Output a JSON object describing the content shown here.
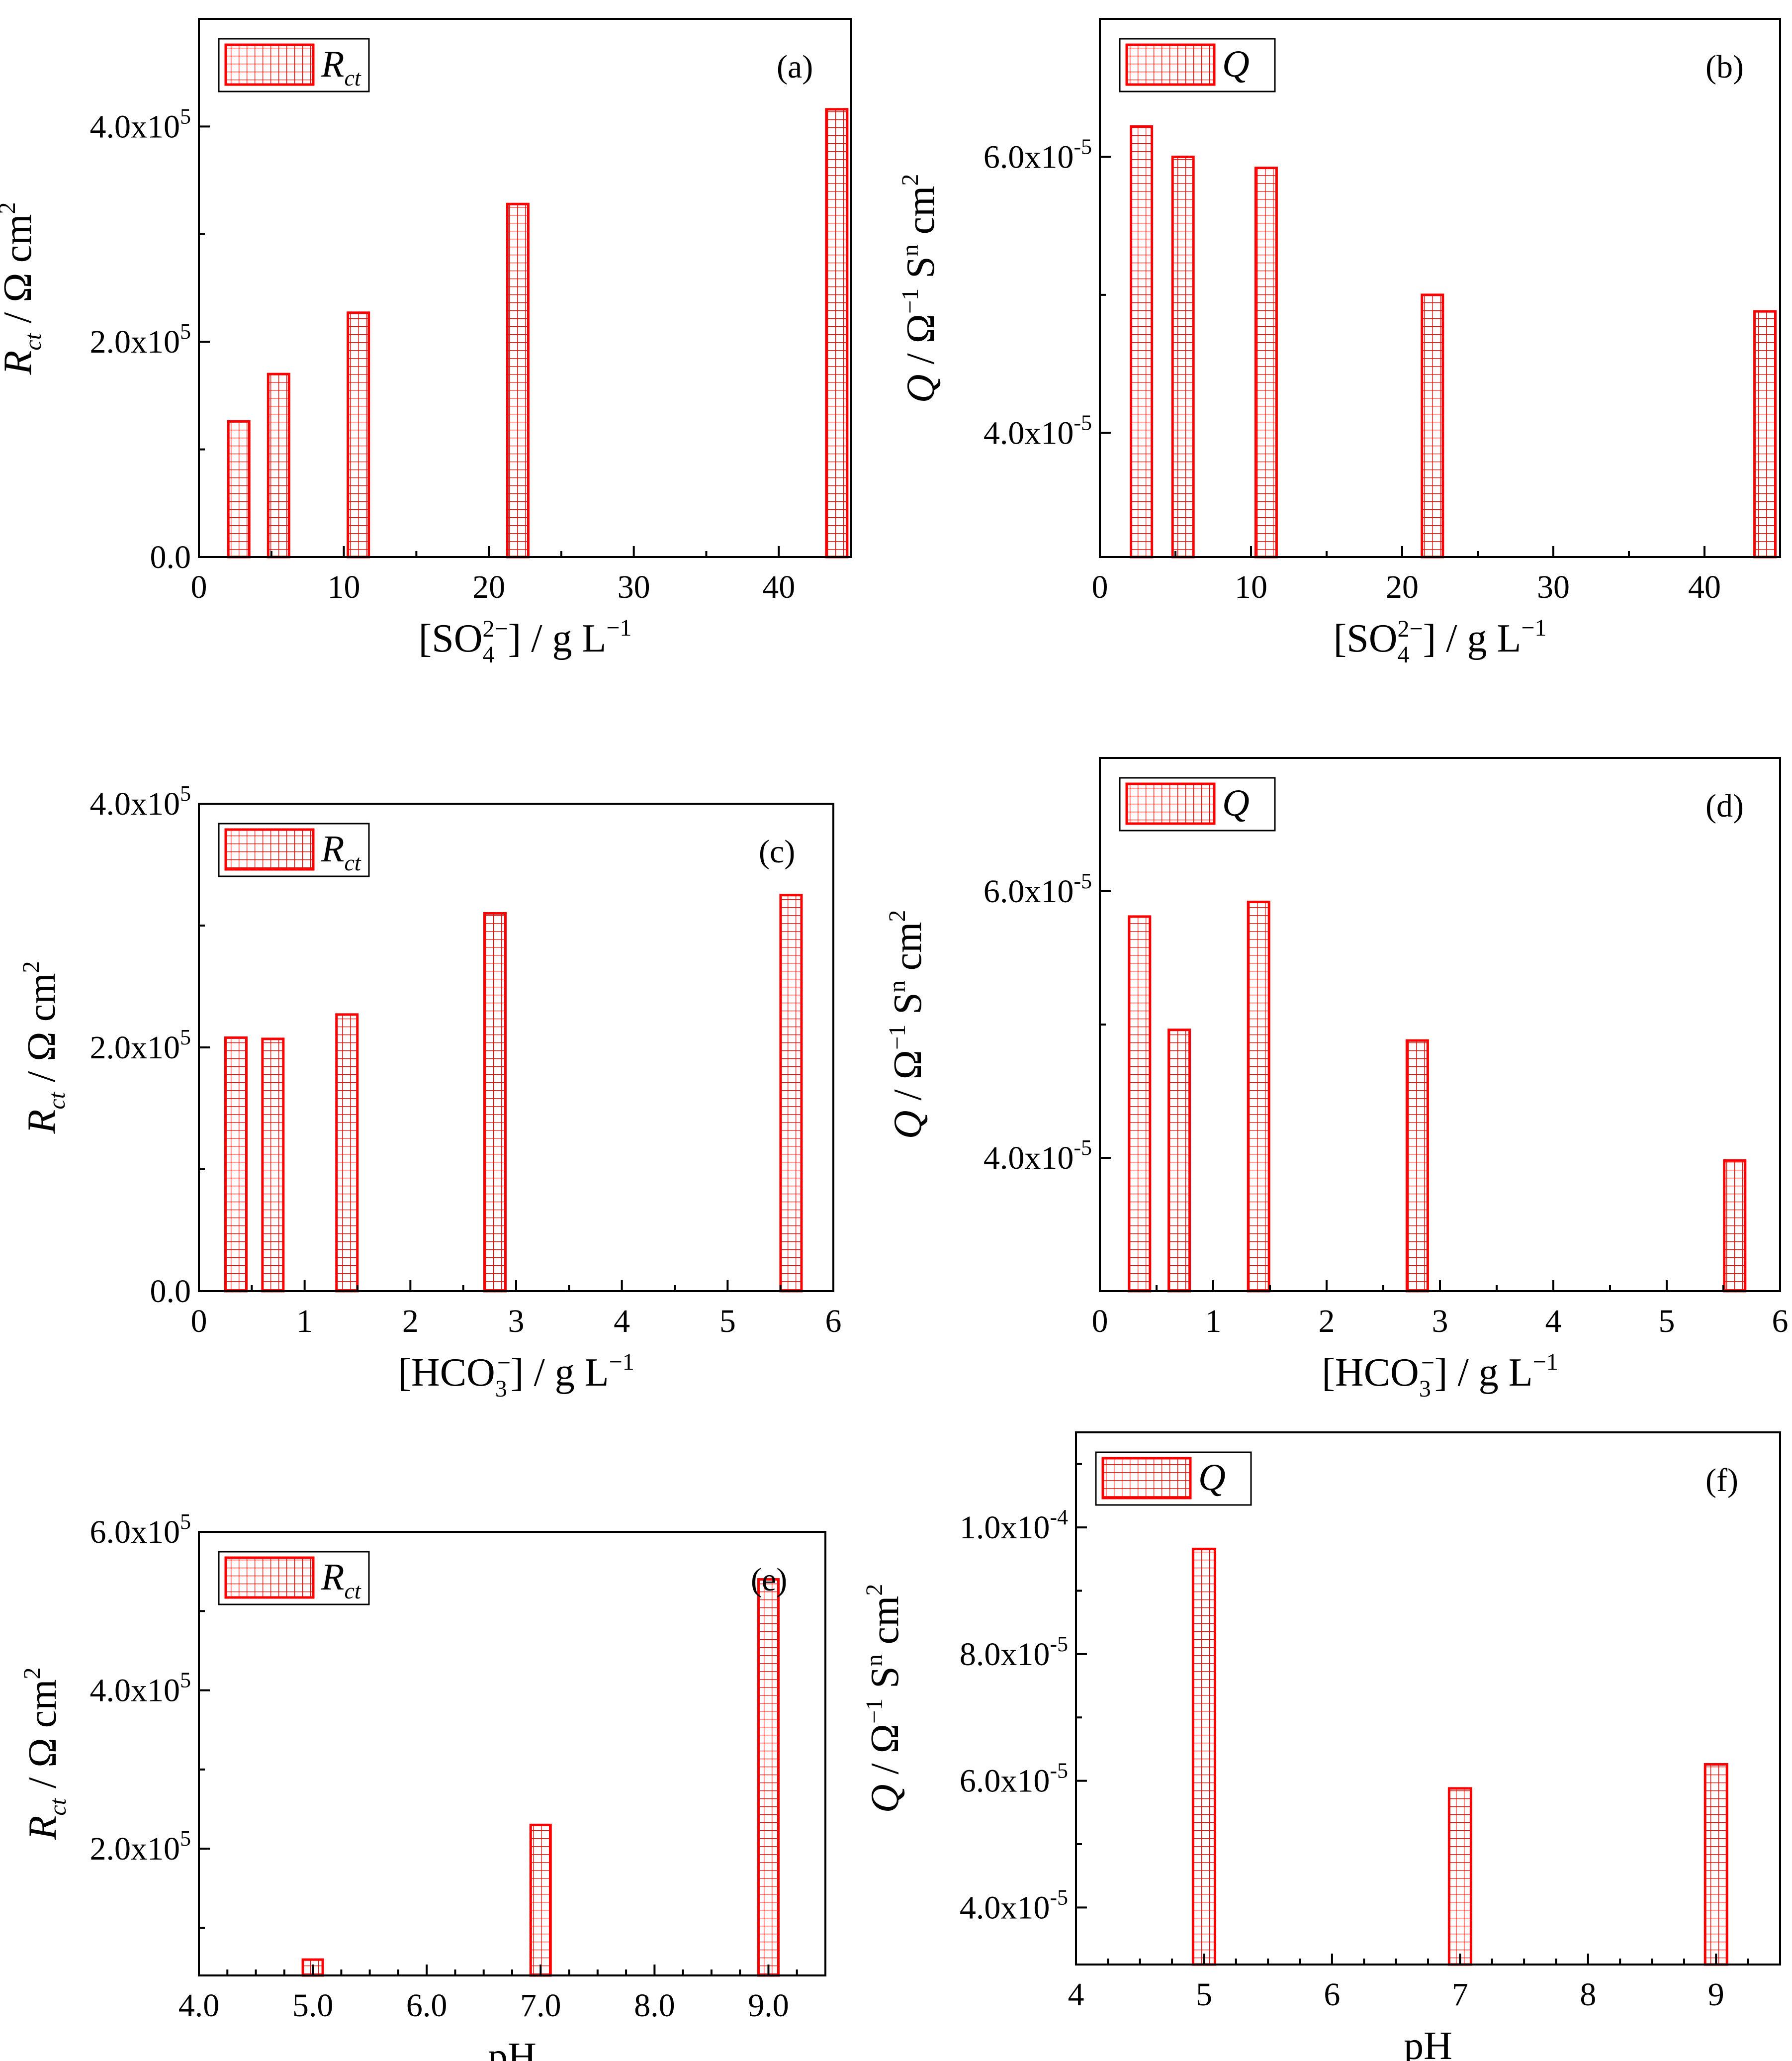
{
  "figure": {
    "bar_color": "#ff0000",
    "axis_color": "#000000",
    "background": "#ffffff"
  },
  "chart_data": [
    {
      "id": "a",
      "type": "bar",
      "panel_label": "(a)",
      "legend": {
        "symbol": "R",
        "subscript": "ct"
      },
      "x": [
        2.75,
        5.5,
        11,
        22,
        44
      ],
      "values": [
        126000,
        170000,
        227000,
        328000,
        416000
      ],
      "xlim": [
        0,
        45
      ],
      "ylim": [
        0,
        500000
      ],
      "xticks": [
        0,
        10,
        20,
        30,
        40
      ],
      "xtick_labels": [
        "0",
        "10",
        "20",
        "30",
        "40"
      ],
      "yticks": [
        0,
        200000,
        400000
      ],
      "ytick_labels": [
        {
          "base": "0.0",
          "exp": ""
        },
        {
          "base": "2.0x10",
          "exp": "5"
        },
        {
          "base": "4.0x10",
          "exp": "5"
        }
      ],
      "xlabel": "[SO4^2−] / g L^−1",
      "ylabel": "Rct / Ω cm^2"
    },
    {
      "id": "b",
      "type": "bar",
      "panel_label": "(b)",
      "legend": {
        "symbol": "Q",
        "subscript": ""
      },
      "x": [
        2.75,
        5.5,
        11,
        22,
        44
      ],
      "values": [
        6.22e-05,
        6e-05,
        5.92e-05,
        5e-05,
        4.88e-05
      ],
      "xlim": [
        0,
        45
      ],
      "ylim": [
        3.1e-05,
        7e-05
      ],
      "xticks": [
        0,
        10,
        20,
        30,
        40
      ],
      "xtick_labels": [
        "0",
        "10",
        "20",
        "30",
        "40"
      ],
      "yticks": [
        4e-05,
        6e-05
      ],
      "ytick_labels": [
        {
          "base": "4.0x10",
          "exp": "-5"
        },
        {
          "base": "6.0x10",
          "exp": "-5"
        }
      ],
      "xlabel": "[SO4^2−] / g L^−1",
      "ylabel": "Q / Ω^−1 S^n cm^2"
    },
    {
      "id": "c",
      "type": "bar",
      "panel_label": "(c)",
      "legend": {
        "symbol": "R",
        "subscript": "ct"
      },
      "x": [
        0.35,
        0.7,
        1.4,
        2.8,
        5.6
      ],
      "values": [
        208000,
        207000,
        227000,
        310000,
        325000
      ],
      "xlim": [
        0,
        6
      ],
      "ylim": [
        0,
        400000
      ],
      "xticks": [
        0,
        1,
        2,
        3,
        4,
        5,
        6
      ],
      "xtick_labels": [
        "0",
        "1",
        "2",
        "3",
        "4",
        "5",
        "6"
      ],
      "yticks": [
        0,
        200000,
        400000
      ],
      "ytick_labels": [
        {
          "base": "0.0",
          "exp": ""
        },
        {
          "base": "2.0x10",
          "exp": "5"
        },
        {
          "base": "4.0x10",
          "exp": "5"
        }
      ],
      "xlabel": "[HCO3^−] / g L^−1",
      "ylabel": "Rct / Ω cm^2"
    },
    {
      "id": "d",
      "type": "bar",
      "panel_label": "(d)",
      "legend": {
        "symbol": "Q",
        "subscript": ""
      },
      "x": [
        0.35,
        0.7,
        1.4,
        2.8,
        5.6
      ],
      "values": [
        5.81e-05,
        4.96e-05,
        5.92e-05,
        4.88e-05,
        3.98e-05
      ],
      "xlim": [
        0,
        6
      ],
      "ylim": [
        3e-05,
        7e-05
      ],
      "xticks": [
        0,
        1,
        2,
        3,
        4,
        5,
        6
      ],
      "xtick_labels": [
        "0",
        "1",
        "2",
        "3",
        "4",
        "5",
        "6"
      ],
      "yticks": [
        4e-05,
        6e-05
      ],
      "ytick_labels": [
        {
          "base": "4.0x10",
          "exp": "-5"
        },
        {
          "base": "6.0x10",
          "exp": "-5"
        }
      ],
      "xlabel": "[HCO3^−] / g L^−1",
      "ylabel": "Q / Ω^−1 S^n cm^2"
    },
    {
      "id": "e",
      "type": "bar",
      "panel_label": "(e)",
      "legend": {
        "symbol": "R",
        "subscript": "ct"
      },
      "x": [
        5.0,
        7.0,
        9.0
      ],
      "values": [
        60000,
        230000,
        540000
      ],
      "xlim": [
        4,
        9.5
      ],
      "ylim": [
        40000,
        600000
      ],
      "xticks": [
        4,
        5,
        6,
        7,
        8,
        9
      ],
      "xtick_labels": [
        "4.0",
        "5.0",
        "6.0",
        "7.0",
        "8.0",
        "9.0"
      ],
      "yticks": [
        200000,
        400000,
        600000
      ],
      "ytick_labels": [
        {
          "base": "2.0x10",
          "exp": "5"
        },
        {
          "base": "4.0x10",
          "exp": "5"
        },
        {
          "base": "6.0x10",
          "exp": "5"
        }
      ],
      "xlabel": "pH",
      "ylabel": "Rct / Ω cm^2"
    },
    {
      "id": "f",
      "type": "bar",
      "panel_label": "(f)",
      "legend": {
        "symbol": "Q",
        "subscript": ""
      },
      "x": [
        5,
        7,
        9
      ],
      "values": [
        9.66e-05,
        5.88e-05,
        6.26e-05
      ],
      "xlim": [
        4,
        9.5
      ],
      "ylim": [
        3.1e-05,
        0.000115
      ],
      "xticks": [
        4,
        5,
        6,
        7,
        8,
        9
      ],
      "xtick_labels": [
        "4",
        "5",
        "6",
        "7",
        "8",
        "9"
      ],
      "yticks": [
        4e-05,
        6e-05,
        8e-05,
        0.0001
      ],
      "ytick_labels": [
        {
          "base": "4.0x10",
          "exp": "-5"
        },
        {
          "base": "6.0x10",
          "exp": "-5"
        },
        {
          "base": "8.0x10",
          "exp": "-5"
        },
        {
          "base": "1.0x10",
          "exp": "-4"
        }
      ],
      "xlabel": "pH",
      "ylabel": "Q / Ω^−1 S^n cm^2"
    }
  ]
}
